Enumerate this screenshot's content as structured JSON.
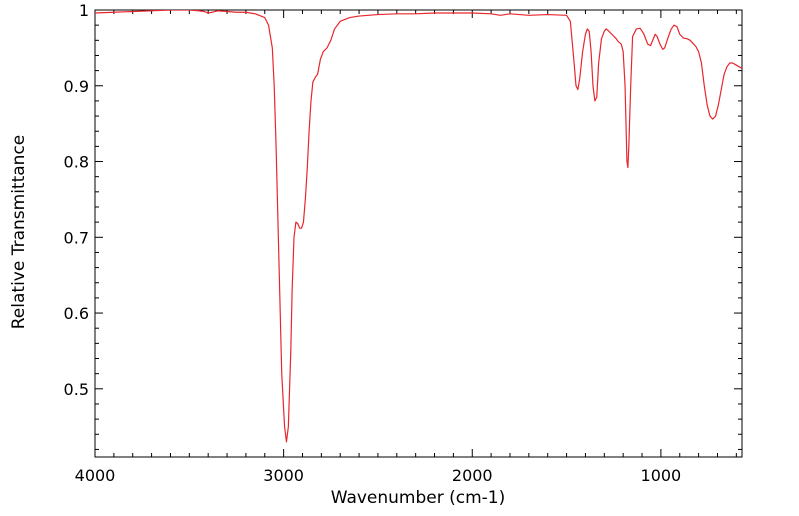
{
  "chart_data": {
    "type": "line",
    "title": "",
    "xlabel": "Wavenumber (cm-1)",
    "ylabel": "Relative Transmittance",
    "xlim": [
      4000,
      570
    ],
    "ylim": [
      0.41,
      1.0
    ],
    "x_reversed": true,
    "grid": false,
    "legend": "none",
    "x_ticks": [
      {
        "value": 4000,
        "label": "4000"
      },
      {
        "value": 3000,
        "label": "3000"
      },
      {
        "value": 2000,
        "label": "2000"
      },
      {
        "value": 1000,
        "label": "1000"
      }
    ],
    "y_ticks": [
      {
        "value": 0.5,
        "label": "0.5"
      },
      {
        "value": 0.6,
        "label": "0.6"
      },
      {
        "value": 0.7,
        "label": "0.7"
      },
      {
        "value": 0.8,
        "label": "0.8"
      },
      {
        "value": 0.9,
        "label": "0.9"
      },
      {
        "value": 1.0,
        "label": "1"
      }
    ],
    "series": [
      {
        "color": "#e8262d",
        "points": [
          [
            4000,
            0.996
          ],
          [
            3900,
            0.997
          ],
          [
            3800,
            0.998
          ],
          [
            3700,
            0.999
          ],
          [
            3600,
            1.0
          ],
          [
            3500,
            1.0
          ],
          [
            3450,
            0.999
          ],
          [
            3420,
            0.998
          ],
          [
            3400,
            0.996
          ],
          [
            3380,
            0.997
          ],
          [
            3350,
            0.999
          ],
          [
            3300,
            0.998
          ],
          [
            3250,
            0.997
          ],
          [
            3200,
            0.997
          ],
          [
            3150,
            0.995
          ],
          [
            3100,
            0.99
          ],
          [
            3080,
            0.98
          ],
          [
            3060,
            0.95
          ],
          [
            3050,
            0.9
          ],
          [
            3040,
            0.82
          ],
          [
            3030,
            0.72
          ],
          [
            3020,
            0.62
          ],
          [
            3010,
            0.52
          ],
          [
            2995,
            0.45
          ],
          [
            2985,
            0.43
          ],
          [
            2975,
            0.45
          ],
          [
            2962,
            0.55
          ],
          [
            2955,
            0.63
          ],
          [
            2945,
            0.7
          ],
          [
            2935,
            0.72
          ],
          [
            2925,
            0.718
          ],
          [
            2915,
            0.712
          ],
          [
            2905,
            0.712
          ],
          [
            2895,
            0.72
          ],
          [
            2885,
            0.75
          ],
          [
            2875,
            0.79
          ],
          [
            2865,
            0.84
          ],
          [
            2855,
            0.88
          ],
          [
            2845,
            0.905
          ],
          [
            2830,
            0.912
          ],
          [
            2820,
            0.915
          ],
          [
            2805,
            0.935
          ],
          [
            2790,
            0.945
          ],
          [
            2770,
            0.95
          ],
          [
            2750,
            0.96
          ],
          [
            2730,
            0.975
          ],
          [
            2700,
            0.985
          ],
          [
            2650,
            0.99
          ],
          [
            2600,
            0.992
          ],
          [
            2550,
            0.993
          ],
          [
            2500,
            0.994
          ],
          [
            2400,
            0.995
          ],
          [
            2300,
            0.995
          ],
          [
            2200,
            0.996
          ],
          [
            2100,
            0.996
          ],
          [
            2000,
            0.996
          ],
          [
            1900,
            0.995
          ],
          [
            1850,
            0.993
          ],
          [
            1800,
            0.995
          ],
          [
            1750,
            0.994
          ],
          [
            1700,
            0.993
          ],
          [
            1600,
            0.994
          ],
          [
            1500,
            0.993
          ],
          [
            1480,
            0.985
          ],
          [
            1460,
            0.93
          ],
          [
            1450,
            0.9
          ],
          [
            1440,
            0.895
          ],
          [
            1430,
            0.91
          ],
          [
            1415,
            0.945
          ],
          [
            1400,
            0.968
          ],
          [
            1390,
            0.975
          ],
          [
            1380,
            0.972
          ],
          [
            1370,
            0.945
          ],
          [
            1360,
            0.9
          ],
          [
            1350,
            0.88
          ],
          [
            1340,
            0.885
          ],
          [
            1330,
            0.93
          ],
          [
            1315,
            0.962
          ],
          [
            1300,
            0.972
          ],
          [
            1290,
            0.975
          ],
          [
            1280,
            0.973
          ],
          [
            1260,
            0.968
          ],
          [
            1240,
            0.963
          ],
          [
            1225,
            0.958
          ],
          [
            1210,
            0.955
          ],
          [
            1200,
            0.945
          ],
          [
            1190,
            0.9
          ],
          [
            1185,
            0.85
          ],
          [
            1180,
            0.8
          ],
          [
            1175,
            0.792
          ],
          [
            1170,
            0.82
          ],
          [
            1160,
            0.9
          ],
          [
            1150,
            0.965
          ],
          [
            1130,
            0.975
          ],
          [
            1110,
            0.976
          ],
          [
            1090,
            0.968
          ],
          [
            1070,
            0.955
          ],
          [
            1055,
            0.953
          ],
          [
            1040,
            0.962
          ],
          [
            1030,
            0.968
          ],
          [
            1020,
            0.965
          ],
          [
            1005,
            0.955
          ],
          [
            990,
            0.948
          ],
          [
            980,
            0.95
          ],
          [
            960,
            0.965
          ],
          [
            945,
            0.975
          ],
          [
            930,
            0.98
          ],
          [
            915,
            0.978
          ],
          [
            900,
            0.968
          ],
          [
            880,
            0.963
          ],
          [
            860,
            0.962
          ],
          [
            845,
            0.96
          ],
          [
            830,
            0.956
          ],
          [
            815,
            0.952
          ],
          [
            800,
            0.945
          ],
          [
            785,
            0.93
          ],
          [
            770,
            0.9
          ],
          [
            755,
            0.875
          ],
          [
            740,
            0.86
          ],
          [
            725,
            0.856
          ],
          [
            710,
            0.86
          ],
          [
            695,
            0.875
          ],
          [
            680,
            0.895
          ],
          [
            665,
            0.915
          ],
          [
            650,
            0.925
          ],
          [
            635,
            0.93
          ],
          [
            620,
            0.93
          ],
          [
            605,
            0.928
          ],
          [
            585,
            0.925
          ],
          [
            570,
            0.923
          ]
        ]
      }
    ]
  }
}
